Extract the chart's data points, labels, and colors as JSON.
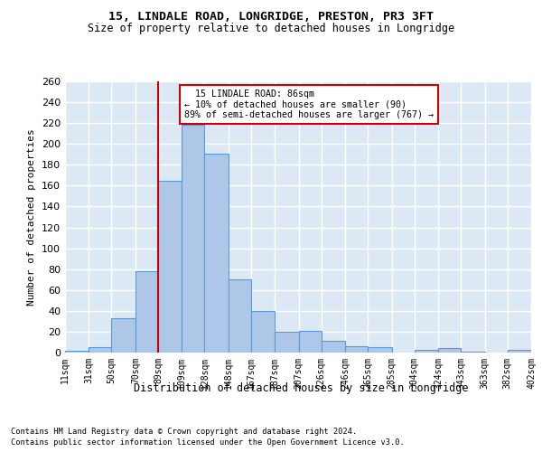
{
  "title1": "15, LINDALE ROAD, LONGRIDGE, PRESTON, PR3 3FT",
  "title2": "Size of property relative to detached houses in Longridge",
  "xlabel": "Distribution of detached houses by size in Longridge",
  "ylabel": "Number of detached properties",
  "footer1": "Contains HM Land Registry data © Crown copyright and database right 2024.",
  "footer2": "Contains public sector information licensed under the Open Government Licence v3.0.",
  "bar_edges": [
    11,
    31,
    50,
    70,
    89,
    109,
    128,
    148,
    167,
    187,
    207,
    226,
    246,
    265,
    285,
    304,
    324,
    343,
    363,
    382,
    402
  ],
  "bar_heights": [
    2,
    5,
    33,
    78,
    165,
    218,
    191,
    70,
    40,
    20,
    21,
    11,
    6,
    5,
    0,
    3,
    4,
    1,
    0,
    3
  ],
  "bar_color": "#aec6e8",
  "bar_edge_color": "#5b9bd5",
  "vline_x": 89,
  "vline_color": "#cc0000",
  "annotation_line1": "  15 LINDALE ROAD: 86sqm",
  "annotation_line2": "← 10% of detached houses are smaller (90)",
  "annotation_line3": "89% of semi-detached houses are larger (767) →",
  "annotation_box_color": "#ffffff",
  "annotation_box_edge": "#cc0000",
  "ylim": [
    0,
    260
  ],
  "background_color": "#dce9f5",
  "grid_color": "#ffffff",
  "tick_labels": [
    "11sqm",
    "31sqm",
    "50sqm",
    "70sqm",
    "89sqm",
    "109sqm",
    "128sqm",
    "148sqm",
    "167sqm",
    "187sqm",
    "207sqm",
    "226sqm",
    "246sqm",
    "265sqm",
    "285sqm",
    "304sqm",
    "324sqm",
    "343sqm",
    "363sqm",
    "382sqm",
    "402sqm"
  ],
  "fig_bg": "#ffffff"
}
